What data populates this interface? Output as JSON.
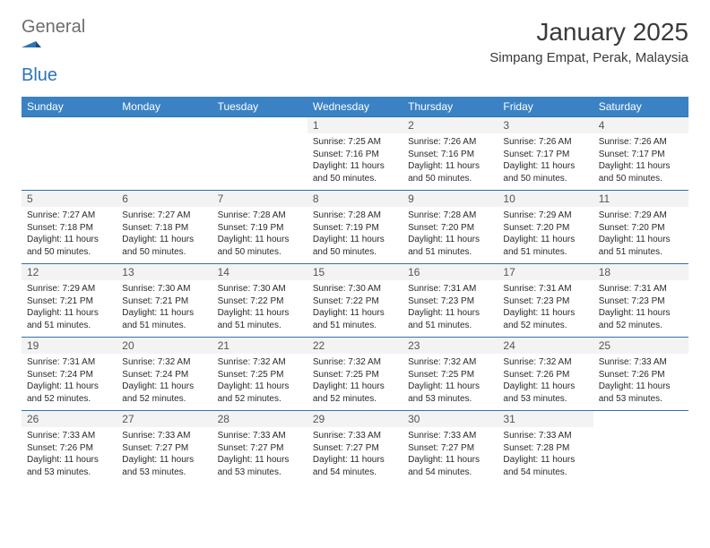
{
  "logo": {
    "text_gray": "General",
    "text_blue": "Blue"
  },
  "title": "January 2025",
  "location": "Simpang Empat, Perak, Malaysia",
  "colors": {
    "header_bg": "#3a82c4",
    "header_fg": "#ffffff",
    "row_border": "#2f74b5",
    "daynum_bg": "#f3f3f3",
    "logo_gray": "#6d6d6d",
    "logo_blue": "#2f74b5"
  },
  "day_names": [
    "Sunday",
    "Monday",
    "Tuesday",
    "Wednesday",
    "Thursday",
    "Friday",
    "Saturday"
  ],
  "weeks": [
    [
      {
        "n": "",
        "sr": "",
        "ss": "",
        "dl": ""
      },
      {
        "n": "",
        "sr": "",
        "ss": "",
        "dl": ""
      },
      {
        "n": "",
        "sr": "",
        "ss": "",
        "dl": ""
      },
      {
        "n": "1",
        "sr": "Sunrise: 7:25 AM",
        "ss": "Sunset: 7:16 PM",
        "dl": "Daylight: 11 hours and 50 minutes."
      },
      {
        "n": "2",
        "sr": "Sunrise: 7:26 AM",
        "ss": "Sunset: 7:16 PM",
        "dl": "Daylight: 11 hours and 50 minutes."
      },
      {
        "n": "3",
        "sr": "Sunrise: 7:26 AM",
        "ss": "Sunset: 7:17 PM",
        "dl": "Daylight: 11 hours and 50 minutes."
      },
      {
        "n": "4",
        "sr": "Sunrise: 7:26 AM",
        "ss": "Sunset: 7:17 PM",
        "dl": "Daylight: 11 hours and 50 minutes."
      }
    ],
    [
      {
        "n": "5",
        "sr": "Sunrise: 7:27 AM",
        "ss": "Sunset: 7:18 PM",
        "dl": "Daylight: 11 hours and 50 minutes."
      },
      {
        "n": "6",
        "sr": "Sunrise: 7:27 AM",
        "ss": "Sunset: 7:18 PM",
        "dl": "Daylight: 11 hours and 50 minutes."
      },
      {
        "n": "7",
        "sr": "Sunrise: 7:28 AM",
        "ss": "Sunset: 7:19 PM",
        "dl": "Daylight: 11 hours and 50 minutes."
      },
      {
        "n": "8",
        "sr": "Sunrise: 7:28 AM",
        "ss": "Sunset: 7:19 PM",
        "dl": "Daylight: 11 hours and 50 minutes."
      },
      {
        "n": "9",
        "sr": "Sunrise: 7:28 AM",
        "ss": "Sunset: 7:20 PM",
        "dl": "Daylight: 11 hours and 51 minutes."
      },
      {
        "n": "10",
        "sr": "Sunrise: 7:29 AM",
        "ss": "Sunset: 7:20 PM",
        "dl": "Daylight: 11 hours and 51 minutes."
      },
      {
        "n": "11",
        "sr": "Sunrise: 7:29 AM",
        "ss": "Sunset: 7:20 PM",
        "dl": "Daylight: 11 hours and 51 minutes."
      }
    ],
    [
      {
        "n": "12",
        "sr": "Sunrise: 7:29 AM",
        "ss": "Sunset: 7:21 PM",
        "dl": "Daylight: 11 hours and 51 minutes."
      },
      {
        "n": "13",
        "sr": "Sunrise: 7:30 AM",
        "ss": "Sunset: 7:21 PM",
        "dl": "Daylight: 11 hours and 51 minutes."
      },
      {
        "n": "14",
        "sr": "Sunrise: 7:30 AM",
        "ss": "Sunset: 7:22 PM",
        "dl": "Daylight: 11 hours and 51 minutes."
      },
      {
        "n": "15",
        "sr": "Sunrise: 7:30 AM",
        "ss": "Sunset: 7:22 PM",
        "dl": "Daylight: 11 hours and 51 minutes."
      },
      {
        "n": "16",
        "sr": "Sunrise: 7:31 AM",
        "ss": "Sunset: 7:23 PM",
        "dl": "Daylight: 11 hours and 51 minutes."
      },
      {
        "n": "17",
        "sr": "Sunrise: 7:31 AM",
        "ss": "Sunset: 7:23 PM",
        "dl": "Daylight: 11 hours and 52 minutes."
      },
      {
        "n": "18",
        "sr": "Sunrise: 7:31 AM",
        "ss": "Sunset: 7:23 PM",
        "dl": "Daylight: 11 hours and 52 minutes."
      }
    ],
    [
      {
        "n": "19",
        "sr": "Sunrise: 7:31 AM",
        "ss": "Sunset: 7:24 PM",
        "dl": "Daylight: 11 hours and 52 minutes."
      },
      {
        "n": "20",
        "sr": "Sunrise: 7:32 AM",
        "ss": "Sunset: 7:24 PM",
        "dl": "Daylight: 11 hours and 52 minutes."
      },
      {
        "n": "21",
        "sr": "Sunrise: 7:32 AM",
        "ss": "Sunset: 7:25 PM",
        "dl": "Daylight: 11 hours and 52 minutes."
      },
      {
        "n": "22",
        "sr": "Sunrise: 7:32 AM",
        "ss": "Sunset: 7:25 PM",
        "dl": "Daylight: 11 hours and 52 minutes."
      },
      {
        "n": "23",
        "sr": "Sunrise: 7:32 AM",
        "ss": "Sunset: 7:25 PM",
        "dl": "Daylight: 11 hours and 53 minutes."
      },
      {
        "n": "24",
        "sr": "Sunrise: 7:32 AM",
        "ss": "Sunset: 7:26 PM",
        "dl": "Daylight: 11 hours and 53 minutes."
      },
      {
        "n": "25",
        "sr": "Sunrise: 7:33 AM",
        "ss": "Sunset: 7:26 PM",
        "dl": "Daylight: 11 hours and 53 minutes."
      }
    ],
    [
      {
        "n": "26",
        "sr": "Sunrise: 7:33 AM",
        "ss": "Sunset: 7:26 PM",
        "dl": "Daylight: 11 hours and 53 minutes."
      },
      {
        "n": "27",
        "sr": "Sunrise: 7:33 AM",
        "ss": "Sunset: 7:27 PM",
        "dl": "Daylight: 11 hours and 53 minutes."
      },
      {
        "n": "28",
        "sr": "Sunrise: 7:33 AM",
        "ss": "Sunset: 7:27 PM",
        "dl": "Daylight: 11 hours and 53 minutes."
      },
      {
        "n": "29",
        "sr": "Sunrise: 7:33 AM",
        "ss": "Sunset: 7:27 PM",
        "dl": "Daylight: 11 hours and 54 minutes."
      },
      {
        "n": "30",
        "sr": "Sunrise: 7:33 AM",
        "ss": "Sunset: 7:27 PM",
        "dl": "Daylight: 11 hours and 54 minutes."
      },
      {
        "n": "31",
        "sr": "Sunrise: 7:33 AM",
        "ss": "Sunset: 7:28 PM",
        "dl": "Daylight: 11 hours and 54 minutes."
      },
      {
        "n": "",
        "sr": "",
        "ss": "",
        "dl": ""
      }
    ]
  ]
}
